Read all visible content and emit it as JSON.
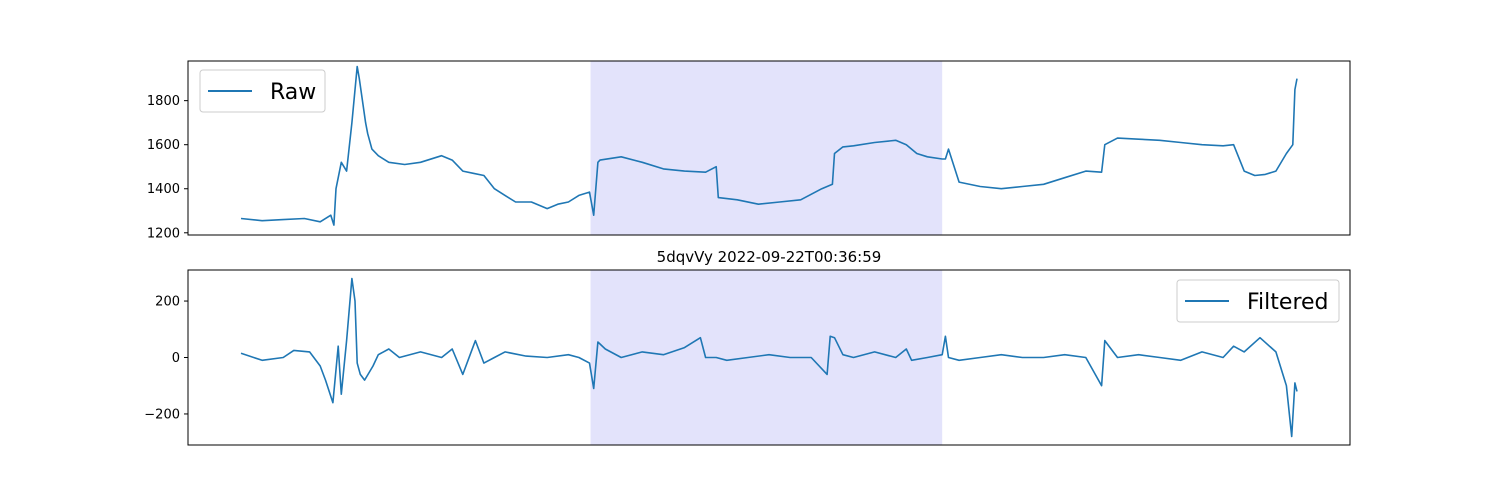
{
  "chart_data": [
    {
      "type": "line",
      "title": "",
      "xlabel": "",
      "ylabel": "",
      "ylim": [
        1190,
        1980
      ],
      "yticks": [
        1200,
        1400,
        1600,
        1800
      ],
      "x_ticks_visible": false,
      "grid": false,
      "legend": {
        "placement": "top-left",
        "entries": [
          "Raw"
        ]
      },
      "highlight_span": {
        "x_start": 0.331,
        "x_end": 0.664,
        "color": "#e3e3fb"
      },
      "series": [
        {
          "name": "Raw",
          "color": "#1f77b4",
          "x": [
            0,
            0.02,
            0.04,
            0.06,
            0.075,
            0.085,
            0.088,
            0.09,
            0.095,
            0.1,
            0.105,
            0.11,
            0.112,
            0.118,
            0.12,
            0.124,
            0.13,
            0.14,
            0.155,
            0.17,
            0.19,
            0.2,
            0.21,
            0.22,
            0.23,
            0.24,
            0.25,
            0.26,
            0.275,
            0.29,
            0.3,
            0.31,
            0.32,
            0.33,
            0.334,
            0.338,
            0.34,
            0.36,
            0.38,
            0.4,
            0.42,
            0.44,
            0.45,
            0.452,
            0.47,
            0.49,
            0.51,
            0.53,
            0.55,
            0.56,
            0.562,
            0.57,
            0.58,
            0.6,
            0.62,
            0.63,
            0.64,
            0.65,
            0.664,
            0.667,
            0.67,
            0.68,
            0.7,
            0.72,
            0.74,
            0.76,
            0.78,
            0.8,
            0.815,
            0.818,
            0.83,
            0.85,
            0.87,
            0.89,
            0.91,
            0.93,
            0.94,
            0.95,
            0.96,
            0.97,
            0.98,
            0.99,
            0.996,
            0.998,
            1.0
          ],
          "y": [
            1265,
            1255,
            1260,
            1265,
            1250,
            1280,
            1235,
            1400,
            1520,
            1480,
            1700,
            1955,
            1900,
            1700,
            1650,
            1580,
            1550,
            1520,
            1510,
            1520,
            1550,
            1530,
            1480,
            1470,
            1460,
            1400,
            1370,
            1340,
            1340,
            1310,
            1330,
            1340,
            1370,
            1385,
            1280,
            1520,
            1530,
            1545,
            1520,
            1490,
            1480,
            1475,
            1500,
            1360,
            1350,
            1330,
            1340,
            1350,
            1400,
            1420,
            1560,
            1590,
            1595,
            1610,
            1620,
            1600,
            1560,
            1545,
            1535,
            1535,
            1580,
            1430,
            1410,
            1400,
            1410,
            1420,
            1450,
            1480,
            1475,
            1600,
            1630,
            1625,
            1620,
            1610,
            1600,
            1595,
            1600,
            1480,
            1460,
            1465,
            1480,
            1560,
            1600,
            1850,
            1900
          ]
        }
      ]
    },
    {
      "type": "line",
      "title": "5dqvVy 2022-09-22T00:36:59",
      "xlabel": "",
      "ylabel": "",
      "ylim": [
        -310,
        310
      ],
      "yticks": [
        -200,
        0,
        200
      ],
      "ytick_labels": [
        "−200",
        "0",
        "200"
      ],
      "x_ticks_visible": false,
      "grid": false,
      "legend": {
        "placement": "top-right",
        "entries": [
          "Filtered"
        ]
      },
      "highlight_span": {
        "x_start": 0.331,
        "x_end": 0.664,
        "color": "#e3e3fb"
      },
      "series": [
        {
          "name": "Filtered",
          "color": "#1f77b4",
          "x": [
            0,
            0.02,
            0.04,
            0.05,
            0.065,
            0.075,
            0.08,
            0.087,
            0.092,
            0.095,
            0.1,
            0.105,
            0.108,
            0.11,
            0.113,
            0.117,
            0.125,
            0.13,
            0.14,
            0.15,
            0.17,
            0.19,
            0.2,
            0.21,
            0.22,
            0.222,
            0.23,
            0.24,
            0.25,
            0.27,
            0.29,
            0.31,
            0.32,
            0.33,
            0.334,
            0.338,
            0.345,
            0.36,
            0.38,
            0.4,
            0.42,
            0.435,
            0.44,
            0.45,
            0.46,
            0.48,
            0.5,
            0.52,
            0.54,
            0.555,
            0.558,
            0.562,
            0.57,
            0.58,
            0.6,
            0.62,
            0.63,
            0.635,
            0.65,
            0.664,
            0.667,
            0.67,
            0.68,
            0.7,
            0.72,
            0.74,
            0.76,
            0.78,
            0.8,
            0.815,
            0.818,
            0.83,
            0.85,
            0.87,
            0.89,
            0.91,
            0.93,
            0.94,
            0.95,
            0.965,
            0.98,
            0.99,
            0.995,
            0.998,
            1.0
          ],
          "y": [
            15,
            -10,
            0,
            25,
            20,
            -30,
            -80,
            -160,
            40,
            -130,
            60,
            280,
            200,
            -20,
            -60,
            -80,
            -30,
            10,
            30,
            0,
            20,
            0,
            30,
            -60,
            40,
            60,
            -20,
            0,
            20,
            5,
            0,
            10,
            0,
            -20,
            -110,
            55,
            30,
            0,
            20,
            10,
            35,
            70,
            0,
            0,
            -10,
            0,
            10,
            0,
            0,
            -60,
            75,
            70,
            10,
            0,
            20,
            0,
            30,
            -10,
            0,
            10,
            75,
            0,
            -10,
            0,
            10,
            0,
            0,
            10,
            0,
            -100,
            60,
            0,
            10,
            0,
            -10,
            20,
            0,
            40,
            20,
            70,
            20,
            -100,
            -280,
            -90,
            -120
          ]
        }
      ]
    }
  ]
}
